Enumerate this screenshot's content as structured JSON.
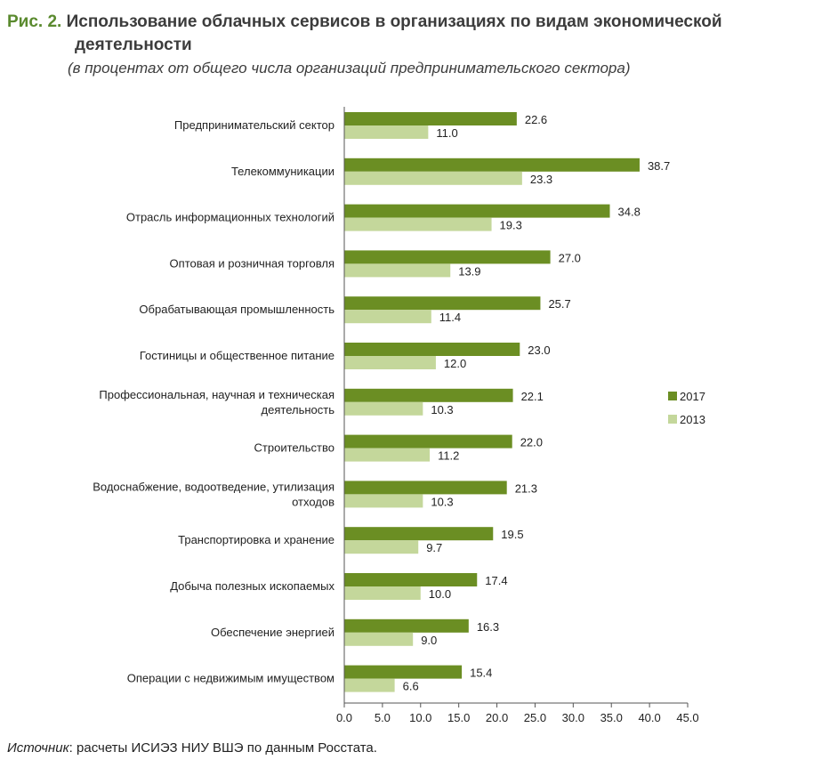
{
  "header": {
    "fig_label": "Рис. 2.",
    "title_line1": "Использование облачных сервисов в организациях по видам экономической",
    "title_line2": "деятельности",
    "subtitle": "(в процентах от общего числа организаций предпринимательского сектора)"
  },
  "footer": {
    "source_label": "Источник",
    "source_text": ": расчеты ИСИЭЗ НИУ ВШЭ по данным Росстата."
  },
  "colors": {
    "s2017": "#6b8e23",
    "s2013": "#c4d79b"
  },
  "chart_data": {
    "type": "bar",
    "orientation": "horizontal",
    "categories": [
      "Предпринимательский сектор",
      "Телекоммуникации",
      "Отрасль информационных технологий",
      "Оптовая и розничная торговля",
      "Обрабатывающая промышленность",
      "Гостиницы и общественное питание",
      "Профессиональная, научная и техническая деятельность",
      "Строительство",
      "Водоснабжение, водоотведение, утилизация отходов",
      "Транспортировка и хранение",
      "Добыча полезных ископаемых",
      "Обеспечение энергией",
      "Операции с недвижимым имуществом"
    ],
    "category_lines": [
      [
        "Предпринимательский сектор"
      ],
      [
        "Телекоммуникации"
      ],
      [
        "Отрасль информационных технологий"
      ],
      [
        "Оптовая и розничная торговля"
      ],
      [
        "Обрабатывающая промышленность"
      ],
      [
        "Гостиницы и общественное питание"
      ],
      [
        "Профессиональная, научная и техническая",
        "деятельность"
      ],
      [
        "Строительство"
      ],
      [
        "Водоснабжение, водоотведение, утилизация",
        "отходов"
      ],
      [
        "Транспортировка и хранение"
      ],
      [
        "Добыча полезных ископаемых"
      ],
      [
        "Обеспечение энергией"
      ],
      [
        "Операции с недвижимым имуществом"
      ]
    ],
    "series": [
      {
        "name": "2017",
        "values": [
          22.6,
          38.7,
          34.8,
          27.0,
          25.7,
          23.0,
          22.1,
          22.0,
          21.3,
          19.5,
          17.4,
          16.3,
          15.4
        ]
      },
      {
        "name": "2013",
        "values": [
          11.0,
          23.3,
          19.3,
          13.9,
          11.4,
          12.0,
          10.3,
          11.2,
          10.3,
          9.7,
          10.0,
          9.0,
          6.6
        ]
      }
    ],
    "xlim": [
      0,
      45
    ],
    "xticks": [
      "0.0",
      "5.0",
      "10.0",
      "15.0",
      "20.0",
      "25.0",
      "30.0",
      "35.0",
      "40.0",
      "45.0"
    ],
    "legend_position": "right",
    "grid": false
  }
}
